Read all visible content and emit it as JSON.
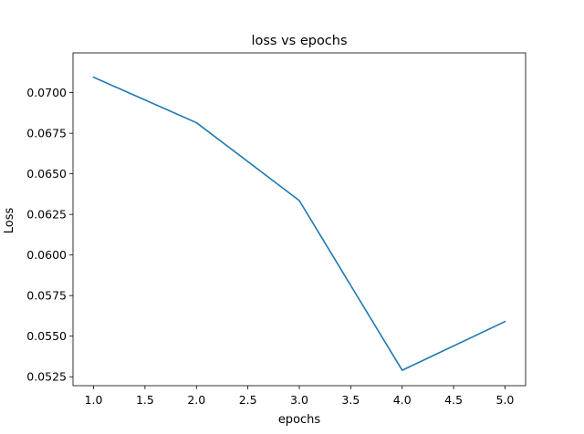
{
  "chart_data": {
    "type": "line",
    "title": "loss vs epochs",
    "xlabel": "epochs",
    "ylabel": "Loss",
    "xlim": [
      0.8,
      5.2
    ],
    "ylim": [
      0.05195,
      0.07245
    ],
    "xticks": [
      1.0,
      1.5,
      2.0,
      2.5,
      3.0,
      3.5,
      4.0,
      4.5,
      5.0
    ],
    "xtick_labels": [
      "1.0",
      "1.5",
      "2.0",
      "2.5",
      "3.0",
      "3.5",
      "4.0",
      "4.5",
      "5.0"
    ],
    "yticks": [
      0.0525,
      0.055,
      0.0575,
      0.06,
      0.0625,
      0.065,
      0.0675,
      0.07
    ],
    "ytick_labels": [
      "0.0525",
      "0.0550",
      "0.0575",
      "0.0600",
      "0.0625",
      "0.0650",
      "0.0675",
      "0.0700"
    ],
    "grid": false,
    "legend": "none",
    "series": [
      {
        "color": "#1f77b4",
        "x": [
          1.0,
          2.0,
          3.0,
          4.0,
          5.0
        ],
        "y": [
          0.07095,
          0.06815,
          0.06335,
          0.0529,
          0.0559
        ]
      }
    ]
  }
}
